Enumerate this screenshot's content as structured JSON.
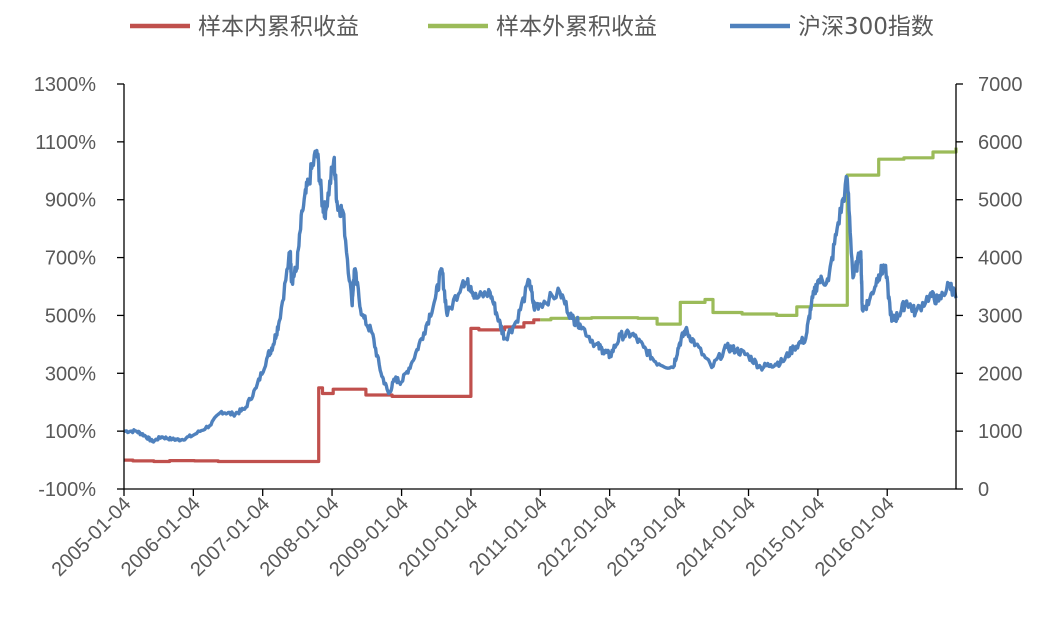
{
  "chart_data": {
    "type": "line",
    "title": "",
    "legend_position": "top",
    "grid": false,
    "x_axis": {
      "type": "date",
      "min": "2005-01-04",
      "max": "2016-12-31",
      "ticks": [
        "2005-01-04",
        "2006-01-04",
        "2007-01-04",
        "2008-01-04",
        "2009-01-04",
        "2010-01-04",
        "2011-01-04",
        "2012-01-04",
        "2013-01-04",
        "2014-01-04",
        "2015-01-04",
        "2016-01-04"
      ]
    },
    "y_axis_left": {
      "unit": "%",
      "min": -100,
      "max": 1300,
      "ticks": [
        "-100%",
        "100%",
        "300%",
        "500%",
        "700%",
        "900%",
        "1100%",
        "1300%"
      ]
    },
    "y_axis_right": {
      "min": 0,
      "max": 7000,
      "ticks": [
        "0",
        "1000",
        "2000",
        "3000",
        "4000",
        "5000",
        "6000",
        "7000"
      ]
    },
    "series": [
      {
        "name": "样本内累积收益",
        "axis": "left",
        "color": "#c0504d",
        "style": "step",
        "points": [
          [
            "2005-01-04",
            0
          ],
          [
            "2005-02-20",
            -3
          ],
          [
            "2005-06-10",
            -5
          ],
          [
            "2005-09-01",
            -2
          ],
          [
            "2006-01-10",
            -3
          ],
          [
            "2006-05-15",
            -5
          ],
          [
            "2006-10-01",
            -5
          ],
          [
            "2007-03-01",
            -5
          ],
          [
            "2007-10-25",
            -5
          ],
          [
            "2007-10-26",
            250
          ],
          [
            "2007-11-15",
            230
          ],
          [
            "2008-01-10",
            245
          ],
          [
            "2008-06-30",
            225
          ],
          [
            "2008-11-15",
            220
          ],
          [
            "2009-12-31",
            220
          ],
          [
            "2010-01-04",
            455
          ],
          [
            "2010-02-15",
            450
          ],
          [
            "2010-06-30",
            460
          ],
          [
            "2010-10-10",
            475
          ],
          [
            "2010-12-01",
            485
          ],
          [
            "2011-01-04",
            485
          ]
        ]
      },
      {
        "name": "样本外累积收益",
        "axis": "left",
        "color": "#9bbb59",
        "style": "step",
        "points": [
          [
            "2011-01-04",
            485
          ],
          [
            "2011-03-01",
            490
          ],
          [
            "2011-10-01",
            492
          ],
          [
            "2012-06-01",
            490
          ],
          [
            "2012-09-10",
            470
          ],
          [
            "2013-01-04",
            470
          ],
          [
            "2013-01-10",
            545
          ],
          [
            "2013-05-20",
            555
          ],
          [
            "2013-07-01",
            510
          ],
          [
            "2013-12-01",
            505
          ],
          [
            "2014-06-01",
            500
          ],
          [
            "2014-09-15",
            530
          ],
          [
            "2014-11-01",
            530
          ],
          [
            "2014-12-01",
            535
          ],
          [
            "2015-06-01",
            535
          ],
          [
            "2015-06-08",
            985
          ],
          [
            "2015-11-20",
            1040
          ],
          [
            "2016-04-01",
            1045
          ],
          [
            "2016-09-01",
            1065
          ],
          [
            "2016-12-31",
            1080
          ]
        ]
      },
      {
        "name": "沪深300指数",
        "axis": "right",
        "color": "#4f81bd",
        "style": "line",
        "points": [
          [
            "2005-01-04",
            1000
          ],
          [
            "2005-03-10",
            1000
          ],
          [
            "2005-04-20",
            930
          ],
          [
            "2005-06-03",
            820
          ],
          [
            "2005-07-20",
            900
          ],
          [
            "2005-09-15",
            860
          ],
          [
            "2005-11-01",
            850
          ],
          [
            "2006-01-04",
            930
          ],
          [
            "2006-04-01",
            1100
          ],
          [
            "2006-06-01",
            1340
          ],
          [
            "2006-08-01",
            1290
          ],
          [
            "2006-10-01",
            1380
          ],
          [
            "2006-12-01",
            1750
          ],
          [
            "2007-01-31",
            2300
          ],
          [
            "2007-03-01",
            2500
          ],
          [
            "2007-04-01",
            2900
          ],
          [
            "2007-05-29",
            4100
          ],
          [
            "2007-06-05",
            3600
          ],
          [
            "2007-07-01",
            3800
          ],
          [
            "2007-08-01",
            4800
          ],
          [
            "2007-09-01",
            5300
          ],
          [
            "2007-10-16",
            5850
          ],
          [
            "2007-11-15",
            4900
          ],
          [
            "2007-12-01",
            4800
          ],
          [
            "2008-01-14",
            5700
          ],
          [
            "2008-02-01",
            4900
          ],
          [
            "2008-03-01",
            4800
          ],
          [
            "2008-04-18",
            3200
          ],
          [
            "2008-05-01",
            3800
          ],
          [
            "2008-06-10",
            3000
          ],
          [
            "2008-08-01",
            2700
          ],
          [
            "2008-09-18",
            2000
          ],
          [
            "2008-10-28",
            1650
          ],
          [
            "2008-12-01",
            1900
          ],
          [
            "2009-01-04",
            1850
          ],
          [
            "2009-03-01",
            2200
          ],
          [
            "2009-05-01",
            2700
          ],
          [
            "2009-07-01",
            3300
          ],
          [
            "2009-08-04",
            3800
          ],
          [
            "2009-09-01",
            3000
          ],
          [
            "2009-11-24",
            3600
          ],
          [
            "2010-01-04",
            3500
          ],
          [
            "2010-02-01",
            3300
          ],
          [
            "2010-04-15",
            3400
          ],
          [
            "2010-06-01",
            2900
          ],
          [
            "2010-07-02",
            2600
          ],
          [
            "2010-09-01",
            2900
          ],
          [
            "2010-11-08",
            3600
          ],
          [
            "2010-12-01",
            3150
          ],
          [
            "2011-01-04",
            3200
          ],
          [
            "2011-04-18",
            3400
          ],
          [
            "2011-06-20",
            2950
          ],
          [
            "2011-08-01",
            2850
          ],
          [
            "2011-10-20",
            2500
          ],
          [
            "2011-12-01",
            2400
          ],
          [
            "2012-01-06",
            2300
          ],
          [
            "2012-03-01",
            2650
          ],
          [
            "2012-05-01",
            2680
          ],
          [
            "2012-07-01",
            2450
          ],
          [
            "2012-09-01",
            2200
          ],
          [
            "2012-12-03",
            2100
          ],
          [
            "2013-01-04",
            2500
          ],
          [
            "2013-02-06",
            2750
          ],
          [
            "2013-04-01",
            2500
          ],
          [
            "2013-06-24",
            2100
          ],
          [
            "2013-09-12",
            2450
          ],
          [
            "2013-11-01",
            2400
          ],
          [
            "2014-01-04",
            2300
          ],
          [
            "2014-03-10",
            2100
          ],
          [
            "2014-05-01",
            2150
          ],
          [
            "2014-07-01",
            2200
          ],
          [
            "2014-09-01",
            2450
          ],
          [
            "2014-11-01",
            2600
          ],
          [
            "2014-12-01",
            3200
          ],
          [
            "2015-01-04",
            3600
          ],
          [
            "2015-03-01",
            3600
          ],
          [
            "2015-04-15",
            4500
          ],
          [
            "2015-06-08",
            5350
          ],
          [
            "2015-07-08",
            3650
          ],
          [
            "2015-08-18",
            4100
          ],
          [
            "2015-08-26",
            3100
          ],
          [
            "2015-10-01",
            3250
          ],
          [
            "2015-11-20",
            3700
          ],
          [
            "2015-12-23",
            3850
          ],
          [
            "2016-01-28",
            2900
          ],
          [
            "2016-03-01",
            3000
          ],
          [
            "2016-04-15",
            3250
          ],
          [
            "2016-06-01",
            3050
          ],
          [
            "2016-08-15",
            3350
          ],
          [
            "2016-10-01",
            3250
          ],
          [
            "2016-11-29",
            3550
          ],
          [
            "2016-12-31",
            3300
          ]
        ]
      }
    ]
  }
}
